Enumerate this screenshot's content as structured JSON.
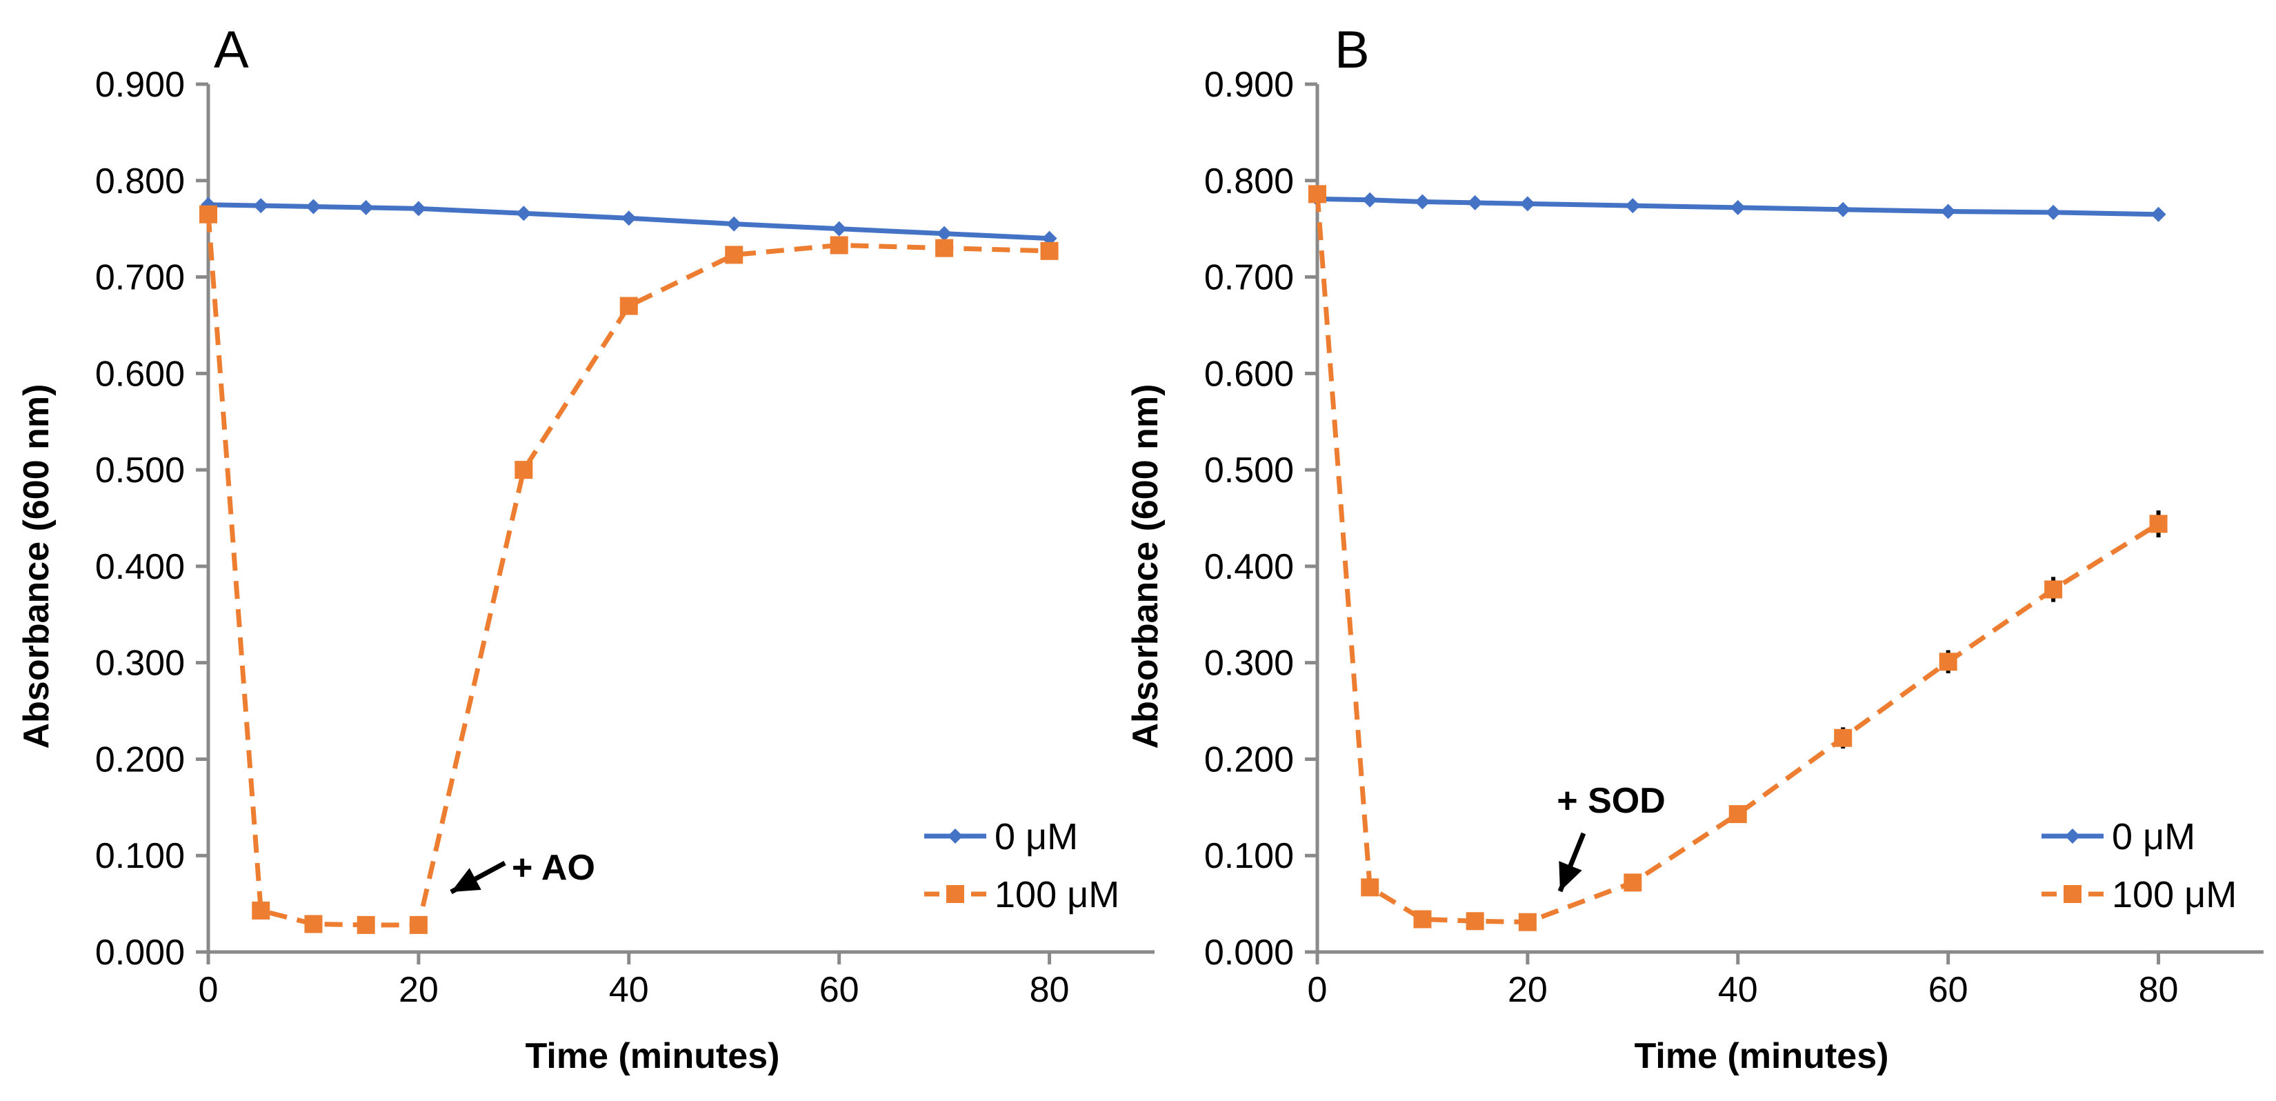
{
  "chart_data": [
    {
      "type": "line",
      "panel_label": "A",
      "xlabel": "Time (minutes)",
      "ylabel": "Absorbance (600 nm)",
      "xlim": [
        0,
        90
      ],
      "ylim": [
        0,
        0.9
      ],
      "x_ticks": [
        "0",
        "20",
        "40",
        "60",
        "80"
      ],
      "y_ticks": [
        "0.000",
        "0.100",
        "0.200",
        "0.300",
        "0.400",
        "0.500",
        "0.600",
        "0.700",
        "0.800",
        "0.900"
      ],
      "legend_position": "bottom-right",
      "series": [
        {
          "name": "0 μM",
          "color": "#4472C4",
          "marker": "diamond",
          "line_style": "solid",
          "x": [
            0,
            5,
            10,
            15,
            20,
            30,
            40,
            50,
            60,
            70,
            80
          ],
          "y": [
            0.775,
            0.774,
            0.773,
            0.772,
            0.771,
            0.766,
            0.761,
            0.755,
            0.75,
            0.745,
            0.74
          ]
        },
        {
          "name": "100 μM",
          "color": "#ED7D31",
          "marker": "square",
          "line_style": "dashed",
          "x": [
            0,
            5,
            10,
            15,
            20,
            30,
            40,
            50,
            60,
            70,
            80
          ],
          "y": [
            0.765,
            0.043,
            0.029,
            0.028,
            0.028,
            0.5,
            0.67,
            0.723,
            0.733,
            0.73,
            0.727
          ]
        }
      ],
      "annotation": {
        "text": "+ AO",
        "x": 20,
        "y": 0.028
      }
    },
    {
      "type": "line",
      "panel_label": "B",
      "xlabel": "Time (minutes)",
      "ylabel": "Absorbance (600 nm)",
      "xlim": [
        0,
        90
      ],
      "ylim": [
        0,
        0.9
      ],
      "x_ticks": [
        "0",
        "20",
        "40",
        "60",
        "80"
      ],
      "y_ticks": [
        "0.000",
        "0.100",
        "0.200",
        "0.300",
        "0.400",
        "0.500",
        "0.600",
        "0.700",
        "0.800",
        "0.900"
      ],
      "legend_position": "bottom-right",
      "series": [
        {
          "name": "0 μM",
          "color": "#4472C4",
          "marker": "diamond",
          "line_style": "solid",
          "x": [
            0,
            5,
            10,
            15,
            20,
            30,
            40,
            50,
            60,
            70,
            80
          ],
          "y": [
            0.781,
            0.78,
            0.778,
            0.777,
            0.776,
            0.774,
            0.772,
            0.77,
            0.768,
            0.767,
            0.765
          ]
        },
        {
          "name": "100 μM",
          "color": "#ED7D31",
          "marker": "square",
          "line_style": "dashed",
          "x": [
            0,
            5,
            10,
            15,
            20,
            30,
            40,
            50,
            60,
            70,
            80
          ],
          "y": [
            0.786,
            0.067,
            0.034,
            0.032,
            0.031,
            0.072,
            0.143,
            0.222,
            0.301,
            0.376,
            0.444
          ],
          "error": [
            0.004,
            0.008,
            0.004,
            0.003,
            0.003,
            0.005,
            0.009,
            0.011,
            0.012,
            0.013,
            0.014
          ]
        }
      ],
      "annotation": {
        "text": "+ SOD",
        "x": 22,
        "y": 0.031
      }
    }
  ]
}
